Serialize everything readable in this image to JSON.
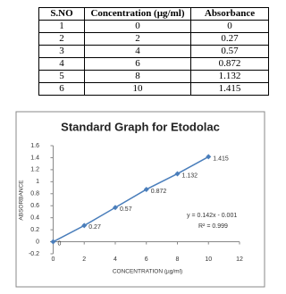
{
  "table": {
    "header": [
      "S.NO",
      "Concentration (µg/ml)",
      "Absorbance"
    ],
    "rows": [
      [
        "1",
        "0",
        "0"
      ],
      [
        "2",
        "2",
        "0.27"
      ],
      [
        "3",
        "4",
        "0.57"
      ],
      [
        "4",
        "6",
        "0.872"
      ],
      [
        "5",
        "8",
        "1.132"
      ],
      [
        "6",
        "10",
        "1.415"
      ]
    ]
  },
  "chart_data": {
    "type": "line",
    "title": "Standard Graph for Etodolac",
    "x_label": "CONCENTRATION (µg/ml)",
    "y_label": "ABSORBANCE",
    "x": [
      0,
      2,
      4,
      6,
      8,
      10
    ],
    "series": [
      {
        "name": "Absorbance",
        "color": "#4a7ebb",
        "values": [
          0,
          0.27,
          0.57,
          0.872,
          1.132,
          1.415
        ]
      }
    ],
    "xlim": [
      -0.2,
      12
    ],
    "xticks": [
      0,
      2,
      4,
      6,
      8,
      10,
      12
    ],
    "ylim": [
      -0.2,
      1.6
    ],
    "yticks": [
      -0.2,
      0,
      0.2,
      0.4,
      0.6,
      0.8,
      1,
      1.2,
      1.4,
      1.6
    ],
    "annotations": [
      "y = 0.142x - 0.001",
      "R² = 0.999"
    ],
    "grid": false
  }
}
